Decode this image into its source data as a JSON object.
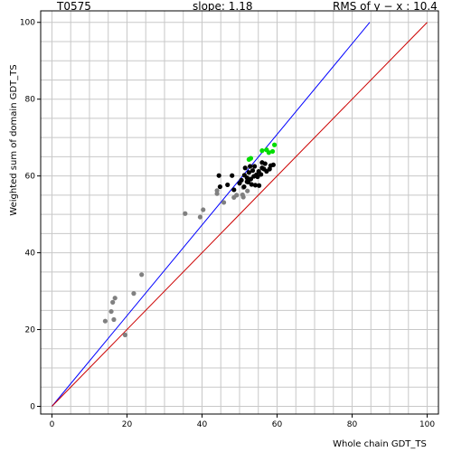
{
  "header": {
    "target": "T0575",
    "slope_text": "slope: 1.18",
    "rms_text": "RMS of  y − x : 10.4"
  },
  "chart_data": {
    "type": "scatter",
    "xlabel": "Whole chain GDT_TS",
    "ylabel": "Weighted sum of domain GDT_TS",
    "xlim": [
      -3,
      103
    ],
    "ylim": [
      -2,
      103
    ],
    "x_ticks": [
      0,
      20,
      40,
      60,
      80,
      100
    ],
    "y_ticks": [
      0,
      20,
      40,
      60,
      80,
      100
    ],
    "grid": true,
    "slope": 1.18,
    "lines": [
      {
        "name": "",
        "color": "#0000ff",
        "from": [
          0,
          0
        ],
        "to": [
          84.7,
          100
        ]
      },
      {
        "name": "",
        "color": "#cc0000",
        "from": [
          0,
          0
        ],
        "to": [
          100,
          100
        ]
      },
      {
        "name": "",
        "color": "#000000",
        "dashed": true,
        "from": [
          52,
          61
        ],
        "to": [
          53.5,
          63
        ]
      }
    ],
    "series": [
      {
        "name": "",
        "color": "#808080",
        "points": [
          [
            14.2,
            22.2
          ],
          [
            15.8,
            24.7
          ],
          [
            16.2,
            27.1
          ],
          [
            16.5,
            22.6
          ],
          [
            16.8,
            28.2
          ],
          [
            19.5,
            18.6
          ],
          [
            21.8,
            29.4
          ],
          [
            23.9,
            34.3
          ],
          [
            35.5,
            50.2
          ],
          [
            39.5,
            49.3
          ],
          [
            40.3,
            51.2
          ],
          [
            44.0,
            55.4
          ],
          [
            44.0,
            56.2
          ],
          [
            45.8,
            53.1
          ],
          [
            48.5,
            54.4
          ],
          [
            49.2,
            55.0
          ],
          [
            50.8,
            55.1
          ],
          [
            51.0,
            54.5
          ],
          [
            51.0,
            57.0
          ],
          [
            52.1,
            56.1
          ]
        ]
      },
      {
        "name": "",
        "color": "#000000",
        "points": [
          [
            44.5,
            60.1
          ],
          [
            44.8,
            57.2
          ],
          [
            46.8,
            57.7
          ],
          [
            48.0,
            60.1
          ],
          [
            48.5,
            56.4
          ],
          [
            50.0,
            58.1
          ],
          [
            50.5,
            58.9
          ],
          [
            51.2,
            57.2
          ],
          [
            51.3,
            60.2
          ],
          [
            51.5,
            62.1
          ],
          [
            52.0,
            59.5
          ],
          [
            52.3,
            58.4
          ],
          [
            52.5,
            60.9
          ],
          [
            52.8,
            62.5
          ],
          [
            53.0,
            59.2
          ],
          [
            53.2,
            57.8
          ],
          [
            53.5,
            61.4
          ],
          [
            53.8,
            59.9
          ],
          [
            54.0,
            62.5
          ],
          [
            54.2,
            57.6
          ],
          [
            54.5,
            60.3
          ],
          [
            54.8,
            59.8
          ],
          [
            55.2,
            57.5
          ],
          [
            55.7,
            60.4
          ],
          [
            56.0,
            63.5
          ],
          [
            56.0,
            62.1
          ],
          [
            56.5,
            61.8
          ],
          [
            56.8,
            63.2
          ],
          [
            57.2,
            61.2
          ],
          [
            58.0,
            61.8
          ],
          [
            58.3,
            62.7
          ],
          [
            59.0,
            62.9
          ],
          [
            55.1,
            61.2
          ],
          [
            52.0,
            58.5
          ]
        ]
      },
      {
        "name": "",
        "color": "#00dd00",
        "points": [
          [
            52.5,
            64.3
          ],
          [
            53.0,
            64.6
          ],
          [
            56.0,
            66.6
          ],
          [
            57.2,
            66.8
          ],
          [
            57.8,
            66.1
          ],
          [
            58.8,
            66.4
          ],
          [
            59.3,
            68.1
          ]
        ]
      }
    ]
  }
}
